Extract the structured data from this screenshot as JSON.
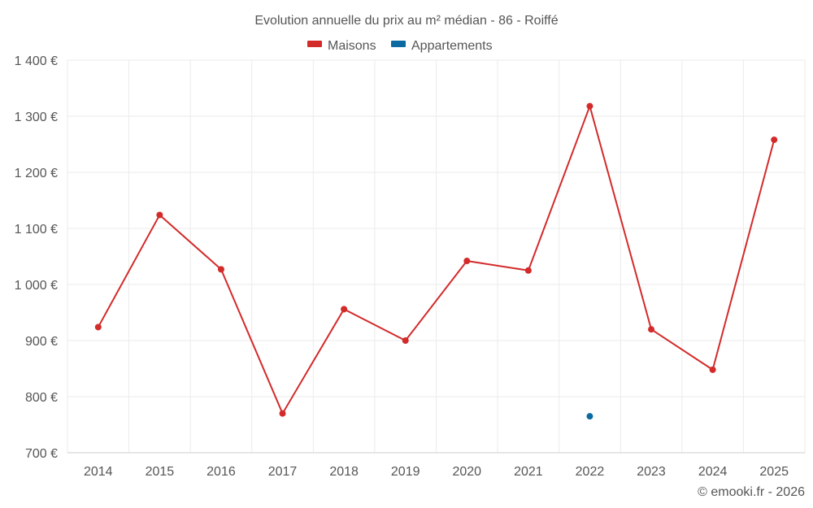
{
  "chart_data": {
    "type": "line",
    "title": "Evolution annuelle du prix au m² médian - 86 - Roiffé",
    "categories": [
      "2014",
      "2015",
      "2016",
      "2017",
      "2018",
      "2019",
      "2020",
      "2021",
      "2022",
      "2023",
      "2024",
      "2025"
    ],
    "series": [
      {
        "name": "Maisons",
        "color": "#d32a2a",
        "values": [
          924,
          1124,
          1027,
          770,
          956,
          900,
          1042,
          1025,
          1318,
          920,
          848,
          1258
        ]
      },
      {
        "name": "Appartements",
        "color": "#0b6aa2",
        "values": [
          null,
          null,
          null,
          null,
          null,
          null,
          null,
          null,
          765,
          null,
          null,
          null
        ]
      }
    ],
    "ylim": [
      700,
      1400
    ],
    "y_ticks": [
      700,
      800,
      900,
      1000,
      1100,
      1200,
      1300,
      1400
    ],
    "y_tick_labels": [
      "700 €",
      "800 €",
      "900 €",
      "1 000 €",
      "1 100 €",
      "1 200 €",
      "1 300 €",
      "1 400 €"
    ],
    "xlabel": "",
    "ylabel": "",
    "grid": true,
    "legend_position": "top-center"
  },
  "credit": "© emooki.fr - 2026"
}
